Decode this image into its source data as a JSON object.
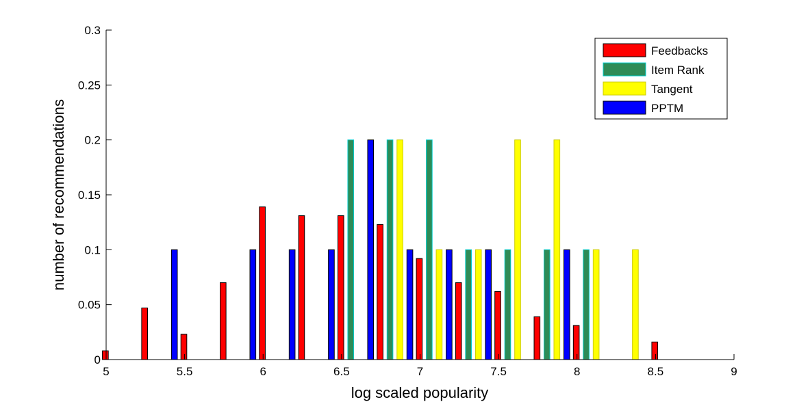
{
  "chart_data": {
    "type": "bar",
    "xlabel": "log scaled popularity",
    "ylabel": "number of recommendations",
    "xlim": [
      5,
      9
    ],
    "ylim": [
      0,
      0.3
    ],
    "xticks": [
      5,
      5.5,
      6,
      6.5,
      7,
      7.5,
      8,
      8.5,
      9
    ],
    "yticks": [
      0,
      0.05,
      0.1,
      0.15,
      0.2,
      0.25,
      0.3
    ],
    "xtick_labels": [
      "5",
      "5.5",
      "6",
      "6.5",
      "7",
      "7.5",
      "8",
      "8.5",
      "9"
    ],
    "ytick_labels": [
      "0",
      "0.05",
      "0.1",
      "0.15",
      "0.2",
      "0.25",
      "0.3"
    ],
    "legend_position": "top-right",
    "grid": false,
    "x": [
      5.09,
      5.34,
      5.59,
      5.84,
      6.09,
      6.34,
      6.59,
      6.84,
      7.09,
      7.34,
      7.59,
      7.84,
      8.09,
      8.34,
      8.59,
      8.84
    ],
    "series": [
      {
        "name": "Feedbacks",
        "color": "#ff0000",
        "edge": "#000000",
        "values": [
          0.008,
          0.047,
          0.023,
          0.07,
          0.139,
          0.131,
          0.131,
          0.123,
          0.092,
          0.07,
          0.062,
          0.039,
          0.031,
          0,
          0.016,
          0
        ]
      },
      {
        "name": "Item Rank",
        "color": "#2e8b57",
        "edge": "#00cccc",
        "values": [
          0,
          0,
          0,
          0,
          0,
          0,
          0.2,
          0.2,
          0.2,
          0.1,
          0.1,
          0.1,
          0.1,
          0,
          0,
          0
        ]
      },
      {
        "name": "Tangent",
        "color": "#ffff00",
        "edge": "#cccc00",
        "values": [
          0,
          0,
          0,
          0,
          0,
          0,
          0,
          0.2,
          0.1,
          0.1,
          0.2,
          0.2,
          0.1,
          0.1,
          0,
          0
        ]
      },
      {
        "name": "PPTM",
        "color": "#0000ff",
        "edge": "#000000",
        "values": [
          0,
          0.1,
          0,
          0.1,
          0.1,
          0.1,
          0.2,
          0.1,
          0.1,
          0.1,
          0,
          0.1,
          0,
          0,
          0,
          0
        ]
      }
    ]
  }
}
